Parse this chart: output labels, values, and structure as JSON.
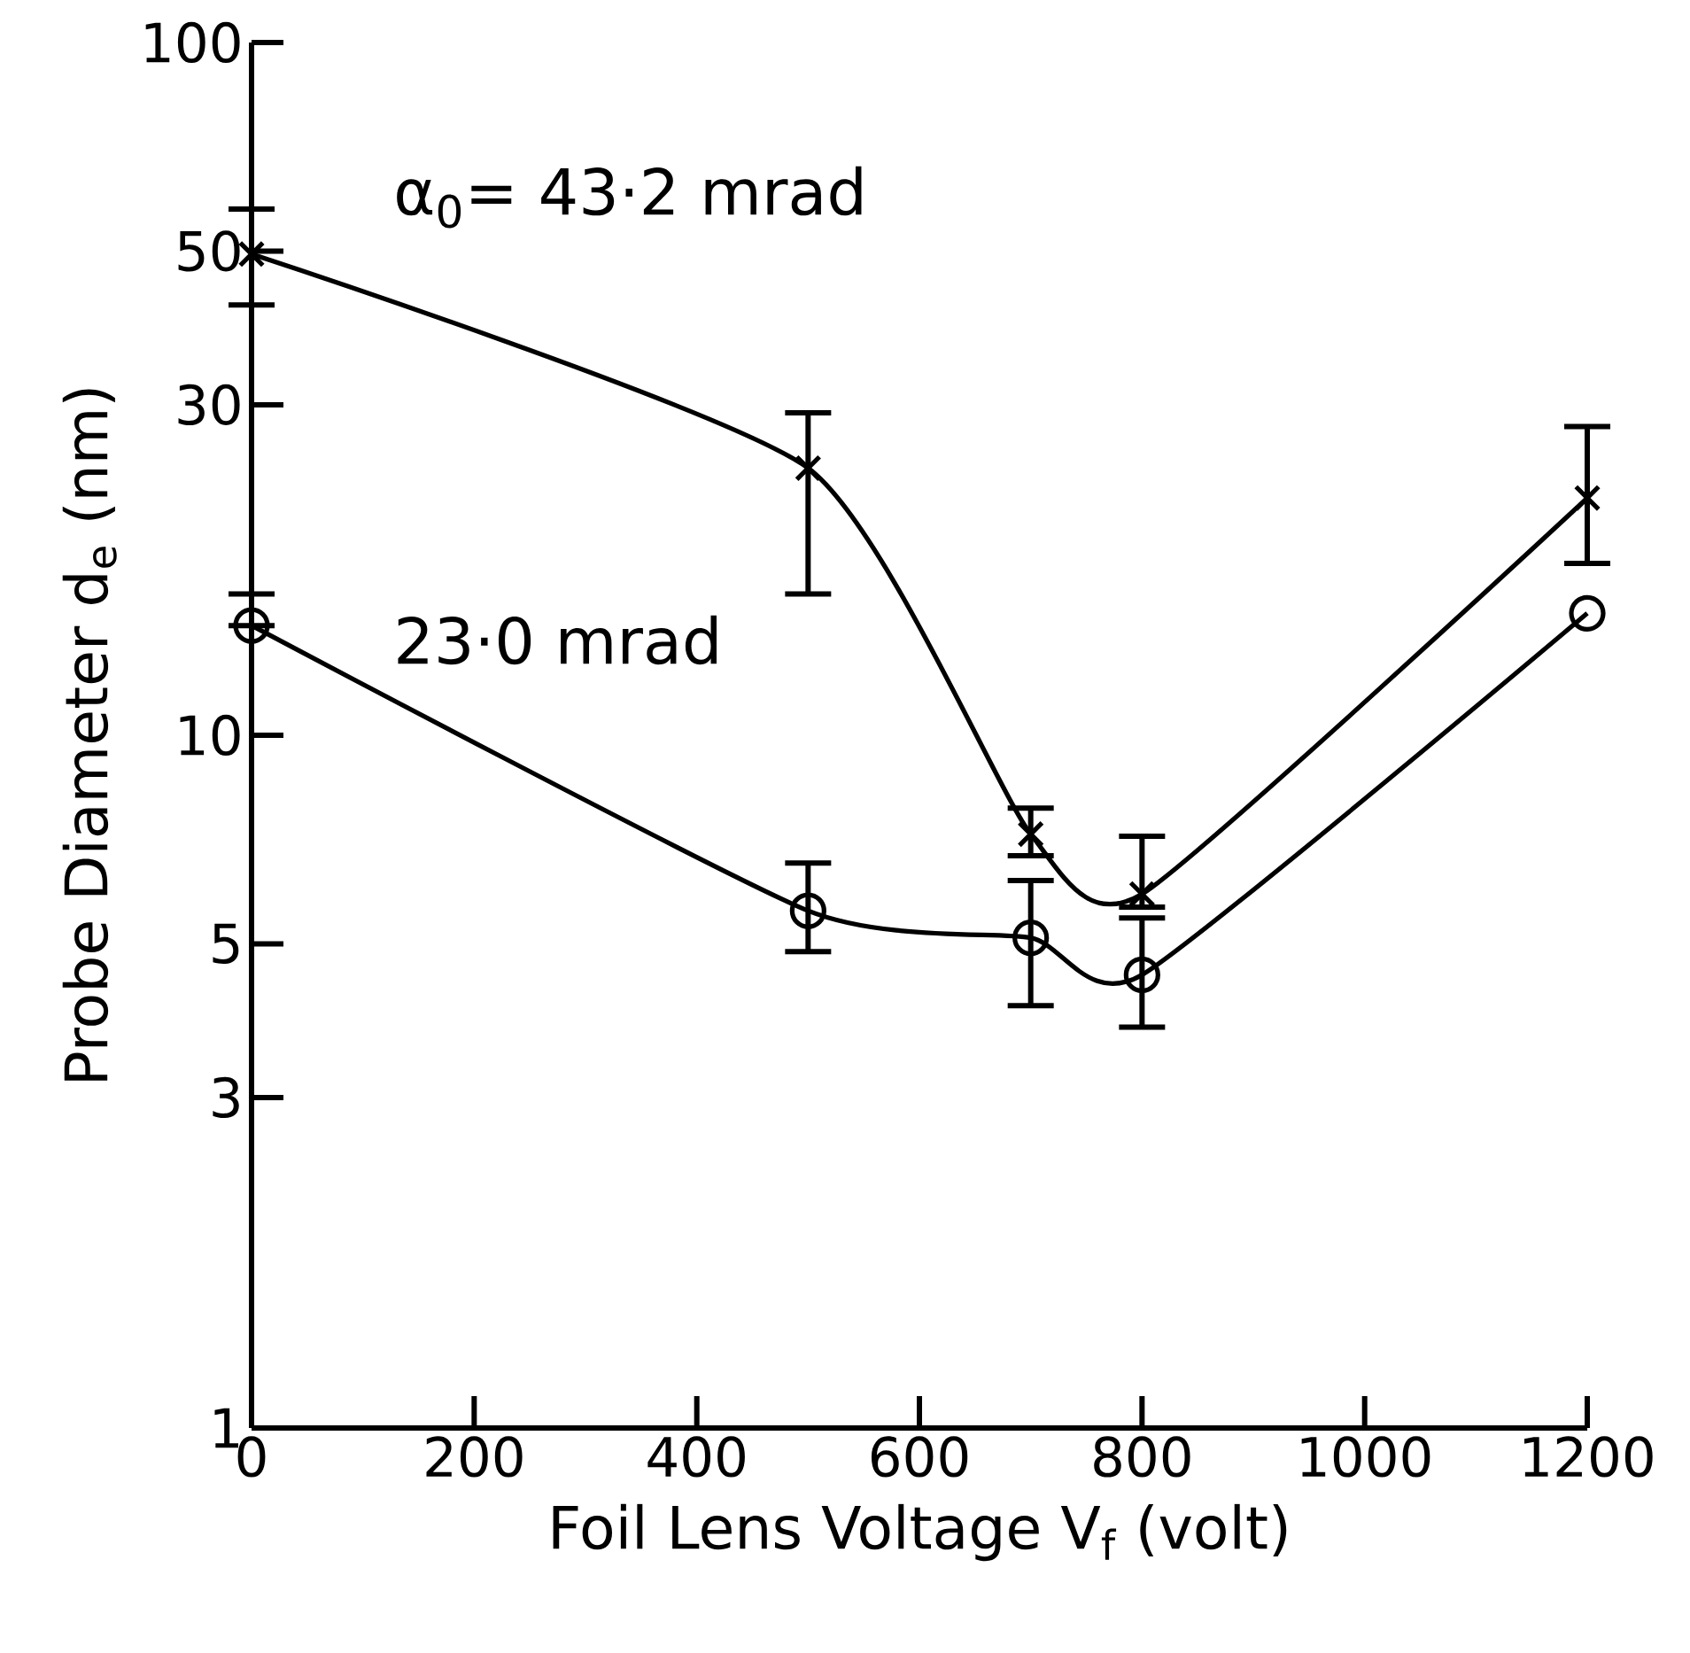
{
  "chart_data": {
    "type": "line",
    "xlabel": "Foil Lens Voltage V$_{f}$ (volt)",
    "ylabel": "Probe Diameter d$_{e}$ (nm)",
    "log": "y",
    "xlim": [
      0,
      1200
    ],
    "xticks": [
      0,
      200,
      400,
      600,
      800,
      1000,
      1200
    ],
    "ylim": [
      1,
      100
    ],
    "yticks": [
      1,
      3,
      5,
      10,
      30,
      50,
      100
    ],
    "grid": false,
    "line_style": "solid",
    "x": [
      0,
      500,
      700,
      800,
      1200
    ],
    "series": [
      {
        "name": "α$_{0}$= 43·2 mrad",
        "color": "#000000",
        "marker": "cross",
        "values": [
          49.5,
          24.3,
          7.2,
          5.9,
          22
        ],
        "errors": [
          [
            41.8,
            57.5
          ],
          [
            16.0,
            29.2
          ],
          [
            6.7,
            7.85
          ],
          [
            5.65,
            7.15
          ],
          [
            17.7,
            27.9
          ]
        ]
      },
      {
        "name": "23·0 mrad",
        "color": "#000000",
        "marker": "circle",
        "values": [
          14.4,
          5.58,
          5.1,
          4.51,
          15.0
        ],
        "errors": [
          [
            14.4,
            16.0
          ],
          [
            4.87,
            6.54
          ],
          [
            4.07,
            6.17
          ],
          [
            3.79,
            5.45
          ],
          null
        ]
      }
    ]
  }
}
